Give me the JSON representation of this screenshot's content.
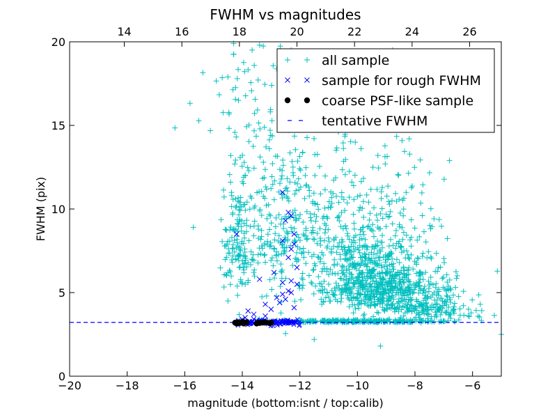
{
  "chart_data": {
    "type": "scatter",
    "title": "FWHM vs magnitudes",
    "xlabel": "magnitude (bottom:isnt / top:calib)",
    "ylabel": "FWHM (pix)",
    "xlim": [
      -20,
      -5
    ],
    "ylim": [
      0,
      20
    ],
    "top_xlim": [
      12.1,
      27.1
    ],
    "x_ticks": [
      -20,
      -18,
      -16,
      -14,
      -12,
      -10,
      -8,
      -6
    ],
    "x_tick_labels": [
      "−20",
      "−18",
      "−16",
      "−14",
      "−12",
      "−10",
      "−8",
      "−6"
    ],
    "y_ticks": [
      0,
      5,
      10,
      15,
      20
    ],
    "y_tick_labels": [
      "0",
      "5",
      "10",
      "15",
      "20"
    ],
    "top_ticks": [
      14,
      16,
      18,
      20,
      22,
      24,
      26
    ],
    "top_tick_labels": [
      "14",
      "16",
      "18",
      "20",
      "22",
      "24",
      "26"
    ],
    "legend_position": "top-right",
    "series": [
      {
        "name": "all sample",
        "marker": "+",
        "color": "#00bfbf",
        "clusters": [
          {
            "x_center": -14.2,
            "x_spread": 0.25,
            "y_center": 6.5,
            "y_spread": 3.0,
            "count": 120
          },
          {
            "x_center": -13.3,
            "x_spread": 0.6,
            "y_center": 7.5,
            "y_spread": 4.5,
            "count": 150
          },
          {
            "x_center": -12.1,
            "x_spread": 0.6,
            "y_center": 6.5,
            "y_spread": 4.0,
            "count": 130
          },
          {
            "x_center": -9.5,
            "x_spread": 1.0,
            "y_center": 5.0,
            "y_spread": 1.5,
            "count": 600
          },
          {
            "x_center": -10.0,
            "x_spread": 1.3,
            "y_center": 8.0,
            "y_spread": 3.0,
            "count": 250
          },
          {
            "x_center": -8.0,
            "x_spread": 0.9,
            "y_center": 4.0,
            "y_spread": 1.0,
            "count": 260
          },
          {
            "x_center": -6.5,
            "x_spread": 0.6,
            "y_center": 3.5,
            "y_spread": 0.4,
            "count": 30
          },
          {
            "x_center": -10.0,
            "x_spread": 1.5,
            "y_center": 3.25,
            "y_spread": 0.06,
            "count": 300
          },
          {
            "x_center": -13.5,
            "x_spread": 1.0,
            "y_center": 15.0,
            "y_spread": 3.0,
            "count": 60
          },
          {
            "x_center": -9.5,
            "x_spread": 1.0,
            "y_center": 14.0,
            "y_spread": 3.0,
            "count": 40
          }
        ],
        "extra_points": [
          [
            -15.7,
            8.9
          ],
          [
            -14.5,
            17.9
          ],
          [
            -14.3,
            19.9
          ],
          [
            -13.4,
            19.8
          ],
          [
            -12.3,
            19.5
          ],
          [
            -8.2,
            14.2
          ],
          [
            -6.8,
            12.9
          ],
          [
            -9.2,
            1.8
          ],
          [
            -5.0,
            2.5
          ],
          [
            -11.5,
            2.2
          ],
          [
            -14.5,
            4.5
          ],
          [
            -14.4,
            13.2
          ]
        ]
      },
      {
        "name": "sample for rough FWHM",
        "marker": "x",
        "color": "#0000ff",
        "points": [
          [
            -14.2,
            8.5
          ],
          [
            -12.6,
            11.0
          ],
          [
            -12.4,
            9.8
          ],
          [
            -12.3,
            9.6
          ],
          [
            -12.5,
            9.3
          ],
          [
            -12.2,
            8.5
          ],
          [
            -12.6,
            8.1
          ],
          [
            -12.2,
            7.9
          ],
          [
            -12.3,
            7.6
          ],
          [
            -12.4,
            7.1
          ],
          [
            -12.1,
            6.5
          ],
          [
            -12.9,
            6.2
          ],
          [
            -13.4,
            5.8
          ],
          [
            -12.6,
            5.6
          ],
          [
            -12.3,
            5.7
          ],
          [
            -12.1,
            5.5
          ],
          [
            -12.4,
            5.1
          ],
          [
            -12.3,
            5.0
          ],
          [
            -12.6,
            4.9
          ],
          [
            -12.8,
            4.7
          ],
          [
            -13.2,
            4.3
          ],
          [
            -13.8,
            3.9
          ],
          [
            -13.6,
            3.7
          ],
          [
            -13.2,
            3.6
          ],
          [
            -12.5,
            4.6
          ],
          [
            -12.2,
            4.1
          ],
          [
            -13.0,
            4.0
          ],
          [
            -14.0,
            3.4
          ],
          [
            -13.9,
            3.5
          ],
          [
            -12.7,
            4.4
          ]
        ],
        "band": {
          "x_from": -14.2,
          "x_to": -12.0,
          "y_center": 3.22,
          "y_spread": 0.08,
          "count": 110
        }
      },
      {
        "name": "coarse PSF-like sample",
        "marker": "o",
        "color": "#000000",
        "points": [
          [
            -14.25,
            3.2
          ],
          [
            -14.2,
            3.15
          ],
          [
            -14.15,
            3.22
          ],
          [
            -14.1,
            3.18
          ],
          [
            -14.05,
            3.2
          ],
          [
            -14.0,
            3.25
          ],
          [
            -13.95,
            3.15
          ],
          [
            -13.9,
            3.2
          ],
          [
            -13.85,
            3.22
          ],
          [
            -13.5,
            3.15
          ],
          [
            -13.45,
            3.2
          ],
          [
            -13.4,
            3.18
          ],
          [
            -13.3,
            3.2
          ],
          [
            -13.2,
            3.22
          ],
          [
            -13.05,
            3.17
          ],
          [
            -13.0,
            3.2
          ]
        ]
      },
      {
        "name": "tentative FWHM",
        "marker": "dashed-line",
        "color": "#0000ff",
        "y_value": 3.22
      }
    ]
  }
}
